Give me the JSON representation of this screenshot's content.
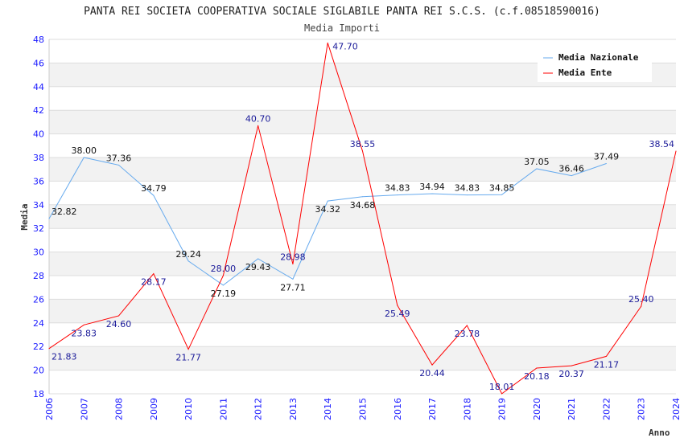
{
  "chart_data": {
    "type": "line",
    "title": "PANTA REI SOCIETA COOPERATIVA SOCIALE SIGLABILE PANTA REI S.C.S. (c.f.08518590016)",
    "subtitle": "Media Importi",
    "xlabel": "Anno",
    "ylabel": "Media",
    "ylim": [
      18,
      48
    ],
    "yticks": [
      "18",
      "20",
      "22",
      "24",
      "26",
      "28",
      "30",
      "32",
      "34",
      "36",
      "38",
      "40",
      "42",
      "44",
      "46",
      "48"
    ],
    "x": [
      "2006",
      "2007",
      "2008",
      "2009",
      "2010",
      "2011",
      "2012",
      "2013",
      "2014",
      "2015",
      "2016",
      "2017",
      "2018",
      "2019",
      "2020",
      "2021",
      "2022",
      "2023",
      "2024"
    ],
    "legend_position": "top-right",
    "series": [
      {
        "name": "Media Nazionale",
        "color": "#66aaee",
        "label_color": "#111111",
        "values": [
          32.82,
          38.0,
          37.36,
          34.79,
          29.24,
          27.19,
          29.43,
          27.71,
          34.32,
          34.68,
          34.83,
          34.94,
          34.83,
          34.85,
          37.05,
          36.46,
          37.49,
          null,
          null
        ],
        "labels": [
          "32.82",
          "38.00",
          "37.36",
          "34.79",
          "29.24",
          "27.19",
          "29.43",
          "27.71",
          "34.32",
          "34.68",
          "34.83",
          "34.94",
          "34.83",
          "34.85",
          "37.05",
          "36.46",
          "37.49",
          null,
          null
        ]
      },
      {
        "name": "Media Ente",
        "color": "#ff0000",
        "label_color": "#1a1a99",
        "values": [
          21.83,
          23.83,
          24.6,
          28.17,
          21.77,
          28.0,
          40.7,
          28.98,
          47.7,
          38.55,
          25.49,
          20.44,
          23.78,
          18.01,
          20.18,
          20.37,
          21.17,
          25.4,
          38.54
        ],
        "labels": [
          "21.83",
          "23.83",
          "24.60",
          "28.17",
          "21.77",
          "28.00",
          "40.70",
          "28.98",
          "47.70",
          "38.55",
          "25.49",
          "20.44",
          "23.78",
          "18.01",
          "20.18",
          "20.37",
          "21.17",
          "25.40",
          "38.54"
        ]
      }
    ]
  }
}
